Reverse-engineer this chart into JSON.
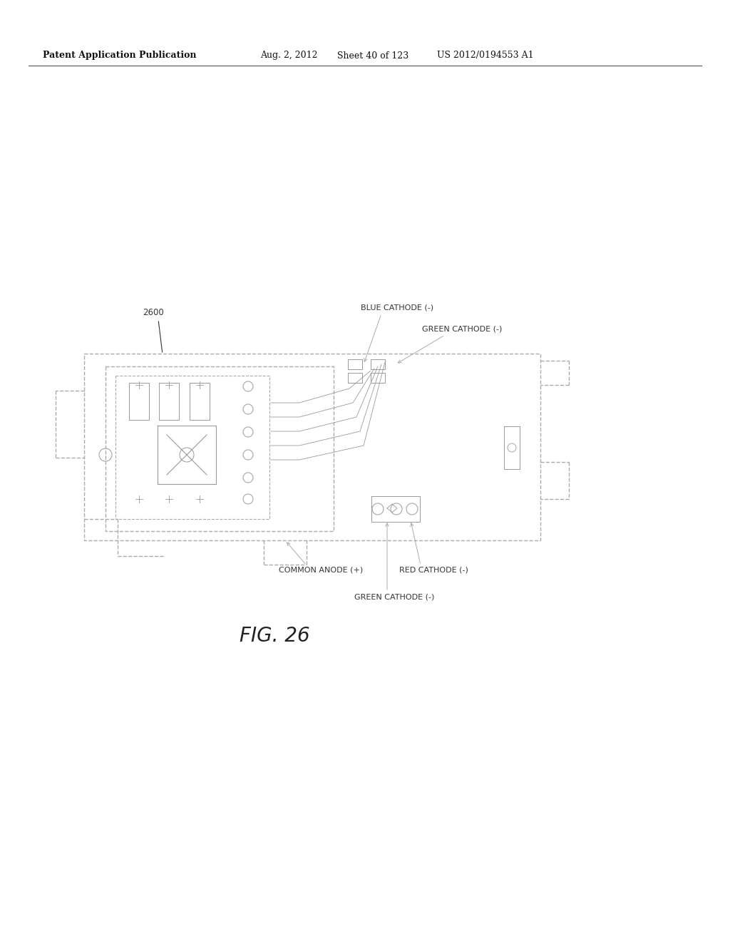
{
  "bg_color": "#ffffff",
  "header_text": "Patent Application Publication",
  "header_date": "Aug. 2, 2012",
  "header_sheet": "Sheet 40 of 123",
  "header_patent": "US 2012/0194553 A1",
  "figure_label": "FIG. 26",
  "reference_num": "2600",
  "label_blue_cathode": "BLUE CATHODE (-)",
  "label_green_cathode_top": "GREEN CATHODE (-)",
  "label_common_anode": "COMMON ANODE (+)",
  "label_red_cathode": "RED CATHODE (-)",
  "label_green_cathode_bot": "GREEN CATHODE (-)",
  "line_color": "#aaaaaa",
  "text_color": "#333333",
  "header_line_color": "#555555"
}
